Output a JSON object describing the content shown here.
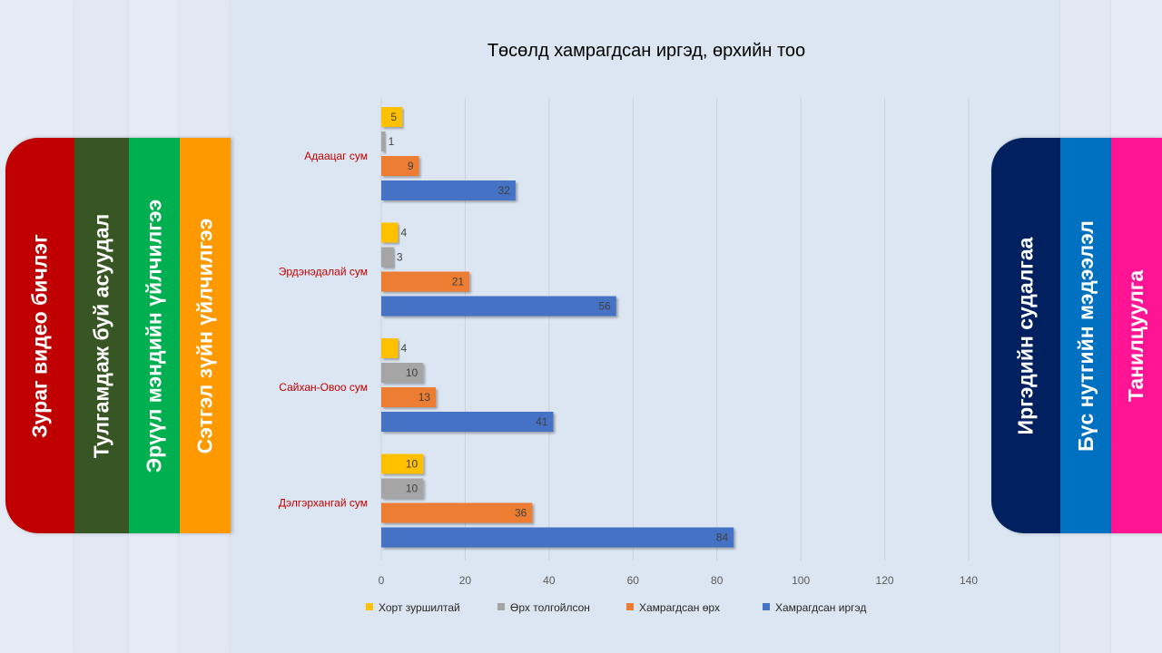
{
  "left_tabs": [
    {
      "label": "Зураг видео бичлэг",
      "color": "#c00000"
    },
    {
      "label": "Тулгамдаж буй асуудал",
      "color": "#375623"
    },
    {
      "label": "Эрүүл мэндийн үйлчилгээ",
      "color": "#00b050"
    },
    {
      "label": "Сэтгэл зүйн үйлчилгээ",
      "color": "#ff9900"
    }
  ],
  "right_tabs": [
    {
      "label": "Иргэдийн судалгаа",
      "color": "#002060"
    },
    {
      "label": "Бүс нутгийн мэдээлэл",
      "color": "#0070c0"
    },
    {
      "label": "Танилцуулга",
      "color": "#ff1493"
    }
  ],
  "chart_data": {
    "type": "bar",
    "orientation": "horizontal",
    "title": "Төсөлд хамрагдсан иргэд, өрхийн тоо",
    "categories": [
      "Адаацаг сум",
      "Эрдэнэдалай сум",
      "Сайхан-Овоо сум",
      "Дэлгэрхангай сум"
    ],
    "series": [
      {
        "name": "Хорт зуршилтай",
        "color": "#ffc000",
        "values": [
          5,
          4,
          4,
          10
        ]
      },
      {
        "name": "Өрх толгойлсон",
        "color": "#a5a5a5",
        "values": [
          1,
          3,
          10,
          10
        ]
      },
      {
        "name": "Хамрагдсан өрх",
        "color": "#ed7d31",
        "values": [
          9,
          21,
          13,
          36
        ]
      },
      {
        "name": "Хамрагдсан иргэд",
        "color": "#4472c4",
        "values": [
          32,
          56,
          41,
          84
        ]
      }
    ],
    "xlim": [
      0,
      140
    ],
    "ticks": [
      0,
      20,
      40,
      60,
      80,
      100,
      120,
      140
    ],
    "grid": true,
    "legend": "bottom",
    "data_labels": true
  }
}
